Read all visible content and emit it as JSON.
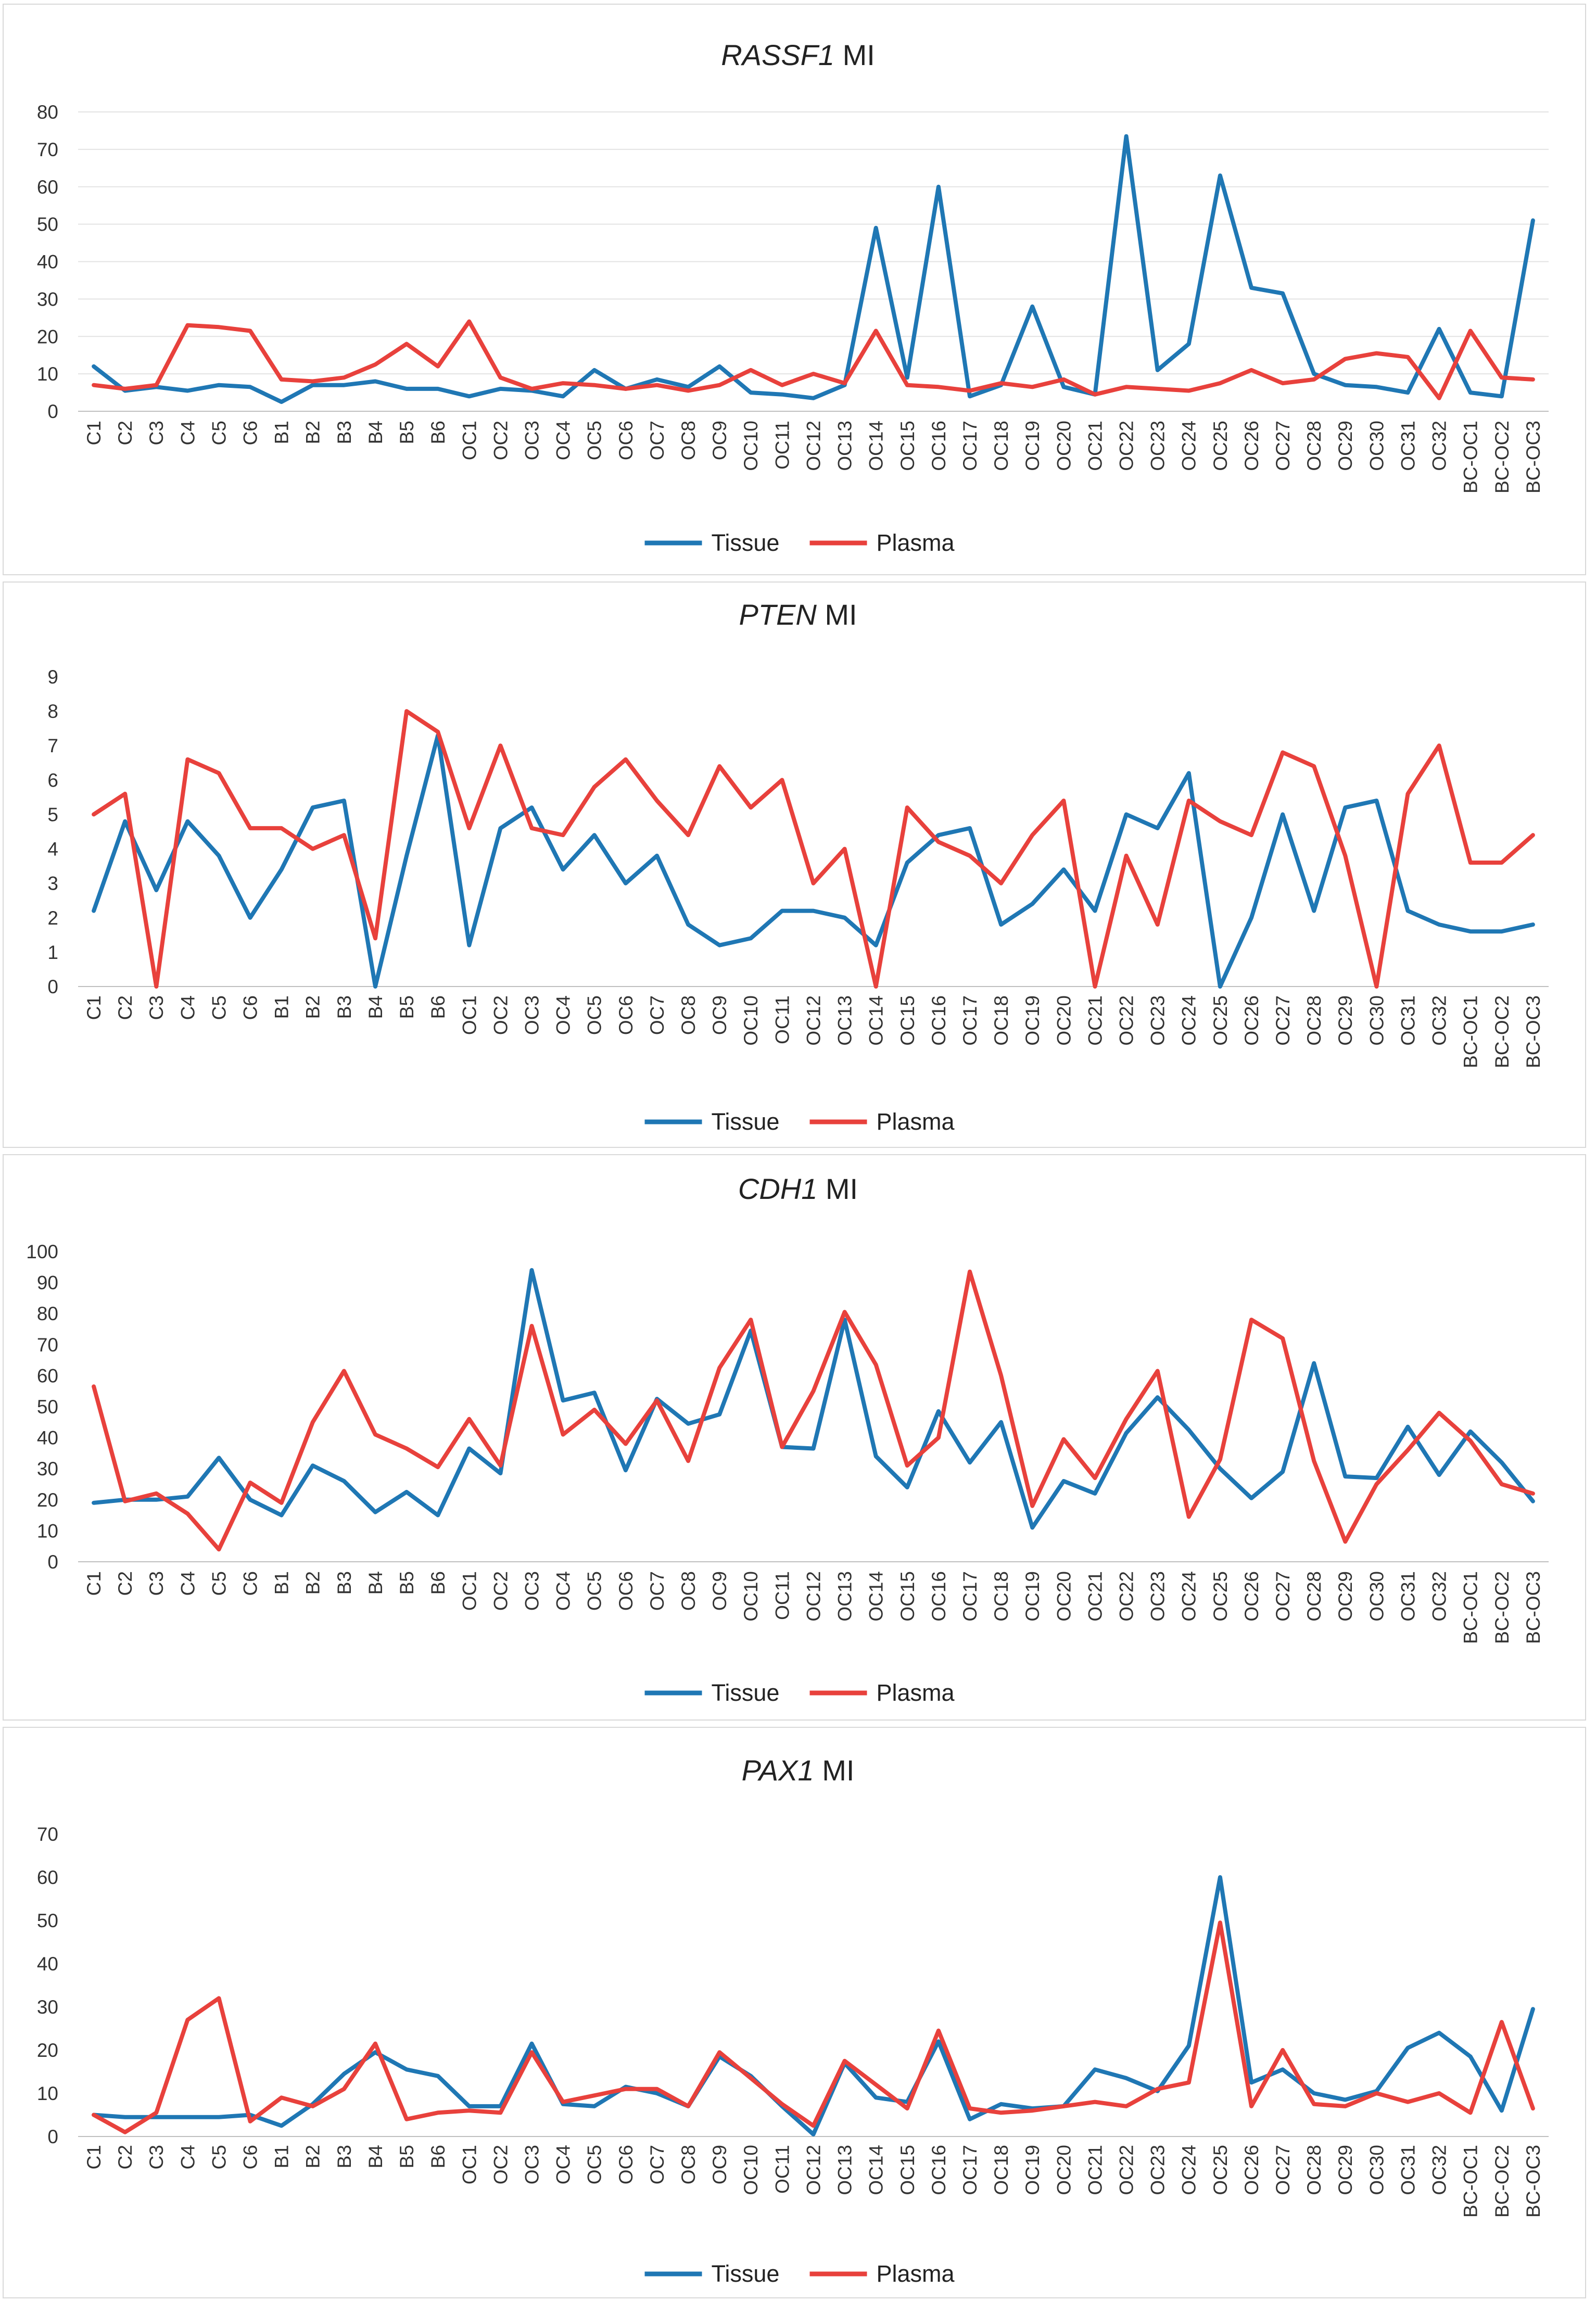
{
  "figure": {
    "colors": {
      "tissue": "#1f77b4",
      "plasma": "#e8413c",
      "grid": "#e3e3e3",
      "background": "#ffffff"
    }
  },
  "chart_data": [
    {
      "type": "line",
      "title_gene": "RASSF1",
      "title_suffix": "MI",
      "xlabel": "",
      "ylabel": "",
      "ylim": [
        0,
        80
      ],
      "yticks": [
        0,
        10,
        20,
        30,
        40,
        50,
        60,
        70,
        80
      ],
      "legend_position": "bottom",
      "grid": true,
      "categories": [
        "C1",
        "C2",
        "C3",
        "C4",
        "C5",
        "C6",
        "B1",
        "B2",
        "B3",
        "B4",
        "B5",
        "B6",
        "OC1",
        "OC2",
        "OC3",
        "OC4",
        "OC5",
        "OC6",
        "OC7",
        "OC8",
        "OC9",
        "OC10",
        "OC11",
        "OC12",
        "OC13",
        "OC14",
        "OC15",
        "OC16",
        "OC17",
        "OC18",
        "OC19",
        "OC20",
        "OC21",
        "OC22",
        "OC23",
        "OC24",
        "OC25",
        "OC26",
        "OC27",
        "OC28",
        "OC29",
        "OC30",
        "OC31",
        "OC32",
        "BC-OC1",
        "BC-OC2",
        "BC-OC3"
      ],
      "series": [
        {
          "name": "Tissue",
          "values": [
            12,
            5.5,
            6.5,
            5.5,
            7,
            6.5,
            2.5,
            7,
            7,
            8,
            6,
            6,
            4,
            6,
            5.5,
            4,
            11,
            6,
            8.5,
            6.5,
            12,
            5,
            4.5,
            3.5,
            7,
            49,
            9,
            60,
            4,
            7,
            28,
            6.5,
            4.5,
            73.5,
            11,
            18,
            63,
            33,
            31.5,
            10,
            7,
            6.5,
            5,
            22,
            5,
            4,
            51
          ]
        },
        {
          "name": "Plasma",
          "values": [
            7,
            6,
            7,
            23,
            22.5,
            21.5,
            8.5,
            8,
            9,
            12.5,
            18,
            12,
            24,
            9,
            6,
            7.5,
            7,
            6,
            7,
            5.5,
            7,
            11,
            7,
            10,
            7.5,
            21.5,
            7,
            6.5,
            5.5,
            7.5,
            6.5,
            8.5,
            4.5,
            6.5,
            6,
            5.5,
            7.5,
            11,
            7.5,
            8.5,
            14,
            15.5,
            14.5,
            3.5,
            21.5,
            9,
            8.5
          ]
        }
      ]
    },
    {
      "type": "line",
      "title_gene": "PTEN",
      "title_suffix": " MI",
      "xlabel": "",
      "ylabel": "",
      "ylim": [
        0,
        9
      ],
      "yticks": [
        0,
        1,
        2,
        3,
        4,
        5,
        6,
        7,
        8,
        9
      ],
      "legend_position": "bottom",
      "grid": false,
      "categories": [
        "C1",
        "C2",
        "C3",
        "C4",
        "C5",
        "C6",
        "B1",
        "B2",
        "B3",
        "B4",
        "B5",
        "B6",
        "OC1",
        "OC2",
        "OC3",
        "OC4",
        "OC5",
        "OC6",
        "OC7",
        "OC8",
        "OC9",
        "OC10",
        "OC11",
        "OC12",
        "OC13",
        "OC14",
        "OC15",
        "OC16",
        "OC17",
        "OC18",
        "OC19",
        "OC20",
        "OC21",
        "OC22",
        "OC23",
        "OC24",
        "OC25",
        "OC26",
        "OC27",
        "OC28",
        "OC29",
        "OC30",
        "OC31",
        "OC32",
        "BC-OC1",
        "BC-OC2",
        "BC-OC3"
      ],
      "series": [
        {
          "name": "Tissue",
          "values": [
            2.2,
            4.8,
            2.8,
            4.8,
            3.8,
            2,
            3.4,
            5.2,
            5.4,
            0,
            3.8,
            7.3,
            1.2,
            4.6,
            5.2,
            3.4,
            4.4,
            3,
            3.8,
            1.8,
            1.2,
            1.4,
            2.2,
            2.2,
            2,
            1.2,
            3.6,
            4.4,
            4.6,
            1.8,
            2.4,
            3.4,
            2.2,
            5,
            4.6,
            6.2,
            0,
            2,
            5,
            2.2,
            5.2,
            5.4,
            2.2,
            1.8,
            1.6,
            1.6,
            1.8
          ]
        },
        {
          "name": "Plasma",
          "values": [
            5,
            5.6,
            0,
            6.6,
            6.2,
            4.6,
            4.6,
            4,
            4.4,
            1.4,
            8,
            7.4,
            4.6,
            7,
            4.6,
            4.4,
            5.8,
            6.6,
            5.4,
            4.4,
            6.4,
            5.2,
            6,
            3,
            4,
            0,
            5.2,
            4.2,
            3.8,
            3,
            4.4,
            5.4,
            0,
            3.8,
            1.8,
            5.4,
            4.8,
            4.4,
            6.8,
            6.4,
            3.8,
            0,
            5.6,
            7,
            3.6,
            3.6,
            4.4
          ]
        }
      ]
    },
    {
      "type": "line",
      "title_gene": "CDH1",
      "title_suffix": "MI",
      "xlabel": "",
      "ylabel": "",
      "ylim": [
        0,
        100
      ],
      "yticks": [
        0,
        10,
        20,
        30,
        40,
        50,
        60,
        70,
        80,
        90,
        100
      ],
      "legend_position": "bottom",
      "grid": false,
      "categories": [
        "C1",
        "C2",
        "C3",
        "C4",
        "C5",
        "C6",
        "B1",
        "B2",
        "B3",
        "B4",
        "B5",
        "B6",
        "OC1",
        "OC2",
        "OC3",
        "OC4",
        "OC5",
        "OC6",
        "OC7",
        "OC8",
        "OC9",
        "OC10",
        "OC11",
        "OC12",
        "OC13",
        "OC14",
        "OC15",
        "OC16",
        "OC17",
        "OC18",
        "OC19",
        "OC20",
        "OC21",
        "OC22",
        "OC23",
        "OC24",
        "OC25",
        "OC26",
        "OC27",
        "OC28",
        "OC29",
        "OC30",
        "OC31",
        "OC32",
        "BC-OC1",
        "BC-OC2",
        "BC-OC3"
      ],
      "series": [
        {
          "name": "Tissue",
          "values": [
            19,
            20,
            20,
            21,
            33.5,
            20,
            15,
            31,
            26,
            16,
            22.5,
            15,
            36.5,
            28.5,
            94,
            52,
            54.5,
            29.5,
            52.5,
            44.5,
            47.5,
            74.5,
            37,
            36.5,
            78,
            34,
            24,
            48.5,
            32,
            45,
            11,
            26,
            22,
            41.5,
            53,
            42.5,
            30,
            20.5,
            29,
            64,
            27.5,
            27,
            43.5,
            28,
            42,
            32,
            19.5
          ]
        },
        {
          "name": "Plasma",
          "values": [
            56.5,
            19.5,
            22,
            15.5,
            4,
            25.5,
            19,
            45,
            61.5,
            41,
            36.5,
            30.5,
            46,
            31,
            76,
            41,
            49,
            38,
            52,
            32.5,
            62.5,
            78,
            37,
            55,
            80.5,
            63.5,
            31,
            40,
            93.5,
            60,
            18,
            39.5,
            27,
            46,
            61.5,
            14.5,
            33,
            78,
            72,
            32.5,
            6.5,
            25,
            36,
            48,
            39,
            25,
            22
          ]
        }
      ]
    },
    {
      "type": "line",
      "title_gene": "PAX1",
      "title_suffix": "MI",
      "xlabel": "",
      "ylabel": "",
      "ylim": [
        0,
        70
      ],
      "yticks": [
        0,
        10,
        20,
        30,
        40,
        50,
        60,
        70
      ],
      "legend_position": "bottom",
      "grid": false,
      "categories": [
        "C1",
        "C2",
        "C3",
        "C4",
        "C5",
        "C6",
        "B1",
        "B2",
        "B3",
        "B4",
        "B5",
        "B6",
        "OC1",
        "OC2",
        "OC3",
        "OC4",
        "OC5",
        "OC6",
        "OC7",
        "OC8",
        "OC9",
        "OC10",
        "OC11",
        "OC12",
        "OC13",
        "OC14",
        "OC15",
        "OC16",
        "OC17",
        "OC18",
        "OC19",
        "OC20",
        "OC21",
        "OC22",
        "OC23",
        "OC24",
        "OC25",
        "OC26",
        "OC27",
        "OC28",
        "OC29",
        "OC30",
        "OC31",
        "OC32",
        "BC-OC1",
        "BC-OC2",
        "BC-OC3"
      ],
      "series": [
        {
          "name": "Tissue",
          "values": [
            5,
            4.5,
            4.5,
            4.5,
            4.5,
            5,
            2.5,
            7.5,
            14.5,
            19.5,
            15.5,
            14,
            7,
            7,
            21.5,
            7.5,
            7,
            11.5,
            10,
            7,
            18.5,
            14,
            7,
            0.5,
            17,
            9,
            8,
            22,
            4,
            7.5,
            6.5,
            7,
            15.5,
            13.5,
            10.5,
            21,
            60,
            12.5,
            15.5,
            10,
            8.5,
            10.5,
            20.5,
            24,
            18.5,
            6,
            29.5
          ]
        },
        {
          "name": "Plasma",
          "values": [
            5,
            1,
            5.5,
            27,
            32,
            3.5,
            9,
            7,
            11,
            21.5,
            4,
            5.5,
            6,
            5.5,
            19.5,
            8,
            9.5,
            11,
            11,
            7,
            19.5,
            13.5,
            7.5,
            2.5,
            17.5,
            12,
            6.5,
            24.5,
            6.5,
            5.5,
            6,
            7,
            8,
            7,
            11,
            12.5,
            49.5,
            7,
            20,
            7.5,
            7,
            10,
            8,
            10,
            5.5,
            26.5,
            6.5
          ]
        }
      ]
    }
  ]
}
